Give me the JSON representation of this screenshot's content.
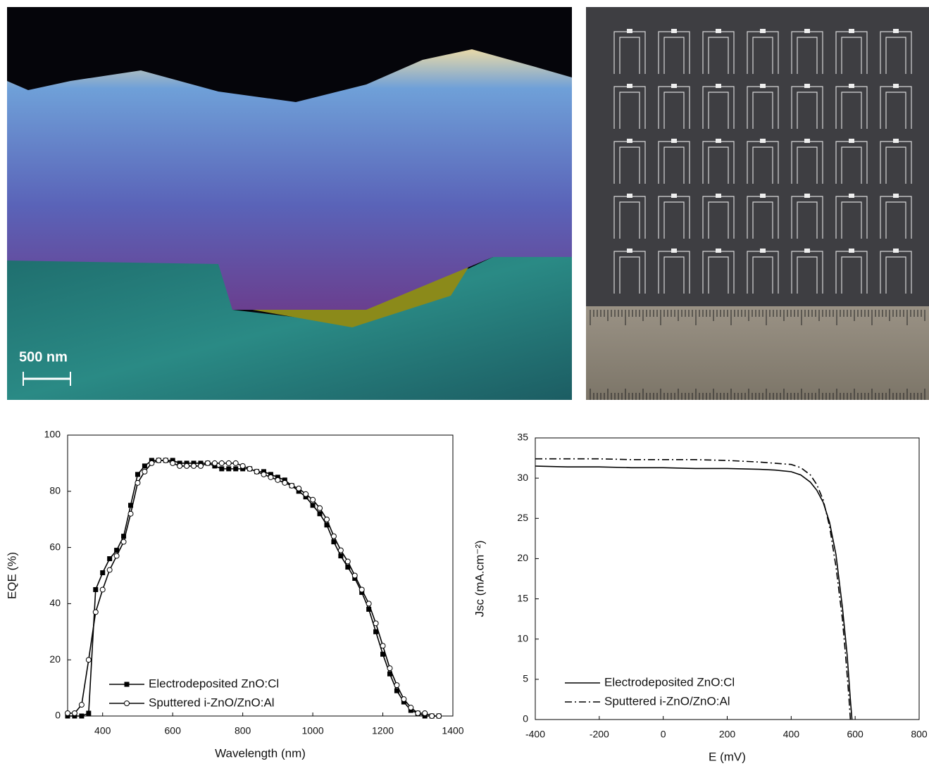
{
  "images": {
    "scale_bar": "500 nm"
  },
  "chart_data": [
    {
      "type": "scatter-line",
      "x_label": "Wavelength (nm)",
      "y_label": "EQE (%)",
      "xlim": [
        300,
        1400
      ],
      "xticks": [
        400,
        600,
        800,
        1000,
        1200,
        1400
      ],
      "ylim": [
        0,
        100
      ],
      "yticks": [
        0,
        20,
        40,
        60,
        80,
        100
      ],
      "x": [
        300,
        320,
        340,
        360,
        380,
        400,
        420,
        440,
        460,
        480,
        500,
        520,
        540,
        560,
        580,
        600,
        620,
        640,
        660,
        680,
        700,
        720,
        740,
        760,
        780,
        800,
        820,
        840,
        860,
        880,
        900,
        920,
        940,
        960,
        980,
        1000,
        1020,
        1040,
        1060,
        1080,
        1100,
        1120,
        1140,
        1160,
        1180,
        1200,
        1220,
        1240,
        1260,
        1280,
        1300,
        1320,
        1340,
        1360
      ],
      "legend": "lower left",
      "series": [
        {
          "name": "Electrodeposited ZnO:Cl",
          "color": "#000000",
          "marker": "square",
          "values": [
            0,
            0,
            0,
            1,
            45,
            51,
            56,
            59,
            64,
            75,
            86,
            89,
            91,
            91,
            91,
            91,
            90,
            90,
            90,
            90,
            90,
            89,
            88,
            88,
            88,
            88,
            88,
            87,
            87,
            86,
            85,
            84,
            82,
            80,
            78,
            75,
            72,
            68,
            62,
            57,
            53,
            49,
            44,
            38,
            30,
            22,
            15,
            9,
            5,
            2,
            1,
            0,
            0,
            0
          ]
        },
        {
          "name": "Sputtered i-ZnO/ZnO:Al",
          "color": "#000000",
          "marker": "circle",
          "values": [
            1,
            1,
            4,
            20,
            37,
            45,
            52,
            57,
            62,
            72,
            83,
            87,
            90,
            91,
            91,
            90,
            89,
            89,
            89,
            89,
            90,
            90,
            90,
            90,
            90,
            89,
            88,
            87,
            86,
            85,
            84,
            83,
            82,
            81,
            79,
            77,
            74,
            70,
            64,
            59,
            55,
            50,
            45,
            40,
            33,
            25,
            17,
            11,
            6,
            3,
            1,
            1,
            0,
            0
          ]
        }
      ]
    },
    {
      "type": "line",
      "x_label": "E (mV)",
      "y_label": "Jsc (mA.cm⁻²)",
      "xlim": [
        -400,
        800
      ],
      "xticks": [
        -400,
        -200,
        0,
        200,
        400,
        600,
        800
      ],
      "ylim": [
        0,
        35
      ],
      "yticks": [
        0,
        5,
        10,
        15,
        20,
        25,
        30,
        35
      ],
      "legend": "lower left",
      "series": [
        {
          "name": "Electrodeposited ZnO:Cl",
          "color": "#000000",
          "dash": "solid",
          "x": [
            -400,
            -300,
            -200,
            -100,
            0,
            100,
            200,
            300,
            350,
            400,
            430,
            460,
            480,
            500,
            520,
            540,
            560,
            575,
            585,
            590
          ],
          "values": [
            31.5,
            31.4,
            31.4,
            31.3,
            31.3,
            31.2,
            31.2,
            31.1,
            31.0,
            30.8,
            30.4,
            29.5,
            28.5,
            27,
            24.5,
            20.5,
            14,
            8,
            2.5,
            0
          ]
        },
        {
          "name": "Sputtered i-ZnO/ZnO:Al",
          "color": "#000000",
          "dash": "dashdot",
          "x": [
            -400,
            -300,
            -200,
            -100,
            0,
            100,
            200,
            300,
            400,
            430,
            460,
            480,
            500,
            520,
            540,
            560,
            570,
            580,
            585
          ],
          "values": [
            32.4,
            32.4,
            32.4,
            32.3,
            32.3,
            32.3,
            32.2,
            32.0,
            31.7,
            31.3,
            30.4,
            29.2,
            27.3,
            24,
            19,
            12.5,
            8,
            3,
            0
          ]
        }
      ]
    }
  ]
}
